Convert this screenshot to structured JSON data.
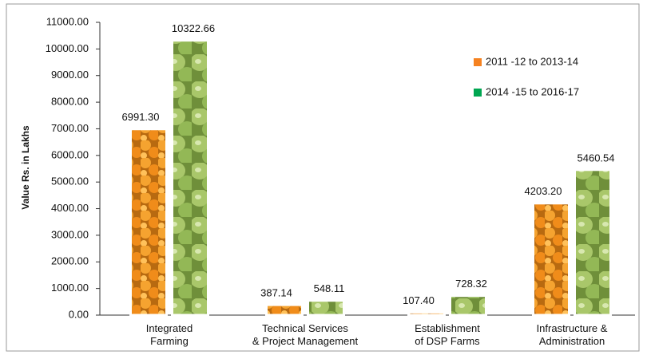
{
  "chart_data": {
    "type": "bar",
    "y_label": "Value Rs. in Lakhs",
    "categories": [
      "Integrated\nFarming",
      "Technical Services\n& Project Management",
      "Establishment\nof DSP Farms",
      "Infrastructure &\nAdministration"
    ],
    "series": [
      {
        "name": "2011 -12 to 2013-14",
        "color": "#f58220",
        "values": [
          6991.3,
          387.14,
          107.4,
          4203.2
        ],
        "value_labels": [
          "6991.30",
          "387.14",
          "107.40",
          "4203.20"
        ]
      },
      {
        "name": "2014 -15 to 2016-17",
        "color": "#00a651",
        "values": [
          10322.66,
          548.11,
          728.32,
          5460.54
        ],
        "value_labels": [
          "10322.66",
          "548.11",
          "728.32",
          "5460.54"
        ]
      }
    ],
    "ylim": [
      0,
      11000
    ],
    "yticks": [
      {
        "value": 0,
        "label": "0.00"
      },
      {
        "value": 1000,
        "label": "1000.00"
      },
      {
        "value": 2000,
        "label": "2000.00"
      },
      {
        "value": 3000,
        "label": "3000.00"
      },
      {
        "value": 4000,
        "label": "4000.00"
      },
      {
        "value": 5000,
        "label": "5000.00"
      },
      {
        "value": 6000,
        "label": "6000.00"
      },
      {
        "value": 7000,
        "label": "7000.00"
      },
      {
        "value": 8000,
        "label": "8000.00"
      },
      {
        "value": 9000,
        "label": "9000.00"
      },
      {
        "value": 10000,
        "label": "10000.00"
      },
      {
        "value": 11000,
        "label": "11000.00"
      }
    ],
    "legend": "upper right"
  }
}
